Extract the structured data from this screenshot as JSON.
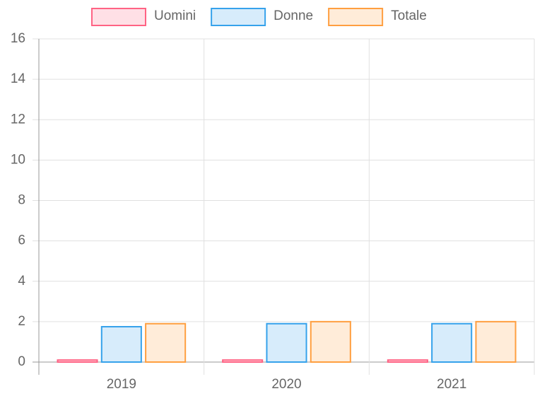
{
  "chart_data": {
    "type": "bar",
    "categories": [
      "2019",
      "2020",
      "2021"
    ],
    "series": [
      {
        "name": "Uomini",
        "color": "#ff6384",
        "values": [
          0.1,
          0.1,
          0.1
        ]
      },
      {
        "name": "Donne",
        "color": "#36a2eb",
        "values": [
          1.75,
          1.9,
          1.9
        ]
      },
      {
        "name": "Totale",
        "color": "#ff9f40",
        "values": [
          1.9,
          2.0,
          2.0
        ]
      }
    ],
    "ylim": [
      0,
      16
    ],
    "yticks": [
      0,
      2,
      4,
      6,
      8,
      10,
      12,
      14,
      16
    ],
    "grid": true,
    "legend": "top"
  }
}
